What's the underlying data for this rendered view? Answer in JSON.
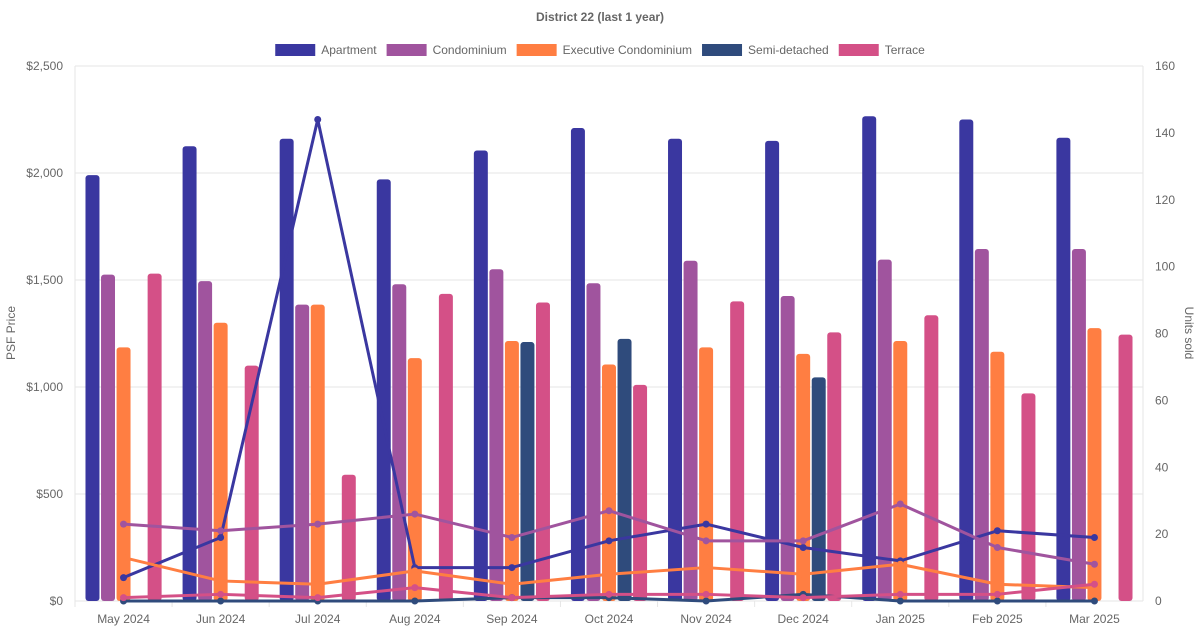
{
  "chart_data": {
    "type": "bar",
    "title": "District 22 (last 1 year)",
    "categories": [
      "May 2024",
      "Jun 2024",
      "Jul 2024",
      "Aug 2024",
      "Sep 2024",
      "Oct 2024",
      "Nov 2024",
      "Dec 2024",
      "Jan 2025",
      "Feb 2025",
      "Mar 2025"
    ],
    "ylabel": "PSF Price",
    "y2label": "Units sold",
    "ylim": [
      0,
      2500
    ],
    "y2lim": [
      0,
      160
    ],
    "yticks": [
      "$0",
      "$500",
      "$1,000",
      "$1,500",
      "$2,000",
      "$2,500"
    ],
    "y2ticks": [
      "0",
      "20",
      "40",
      "60",
      "80",
      "100",
      "120",
      "140",
      "160"
    ],
    "grid": true,
    "legend_position": "top",
    "series": [
      {
        "name": "Apartment",
        "color": "#3a37a0",
        "psf": [
          1990,
          2125,
          2160,
          1970,
          2105,
          2210,
          2160,
          2150,
          2265,
          2250,
          2165
        ],
        "units": [
          7,
          19,
          144,
          10,
          10,
          18,
          23,
          16,
          12,
          21,
          19
        ]
      },
      {
        "name": "Condominium",
        "color": "#a0549e",
        "psf": [
          1525,
          1495,
          1385,
          1480,
          1550,
          1485,
          1590,
          1425,
          1595,
          1645,
          1645
        ],
        "units": [
          23,
          21,
          23,
          26,
          19,
          27,
          18,
          18,
          29,
          16,
          11
        ]
      },
      {
        "name": "Executive Condominium",
        "color": "#ff7e42",
        "psf": [
          1185,
          1300,
          1385,
          1135,
          1215,
          1105,
          1185,
          1155,
          1215,
          1165,
          1275
        ],
        "units": [
          13,
          6,
          5,
          9,
          5,
          8,
          10,
          8,
          11,
          5,
          4
        ]
      },
      {
        "name": "Semi-detached",
        "color": "#2f4b7c",
        "psf": [
          null,
          null,
          null,
          null,
          1210,
          1225,
          null,
          1045,
          null,
          null,
          null
        ],
        "units": [
          0,
          0,
          0,
          0,
          1,
          1,
          0,
          2,
          0,
          0,
          0
        ]
      },
      {
        "name": "Terrace",
        "color": "#d45087",
        "psf": [
          1530,
          1100,
          590,
          1435,
          1395,
          1010,
          1400,
          1255,
          1335,
          970,
          1245
        ],
        "units": [
          1,
          2,
          1,
          4,
          1,
          2,
          2,
          1,
          2,
          2,
          5
        ]
      }
    ]
  }
}
